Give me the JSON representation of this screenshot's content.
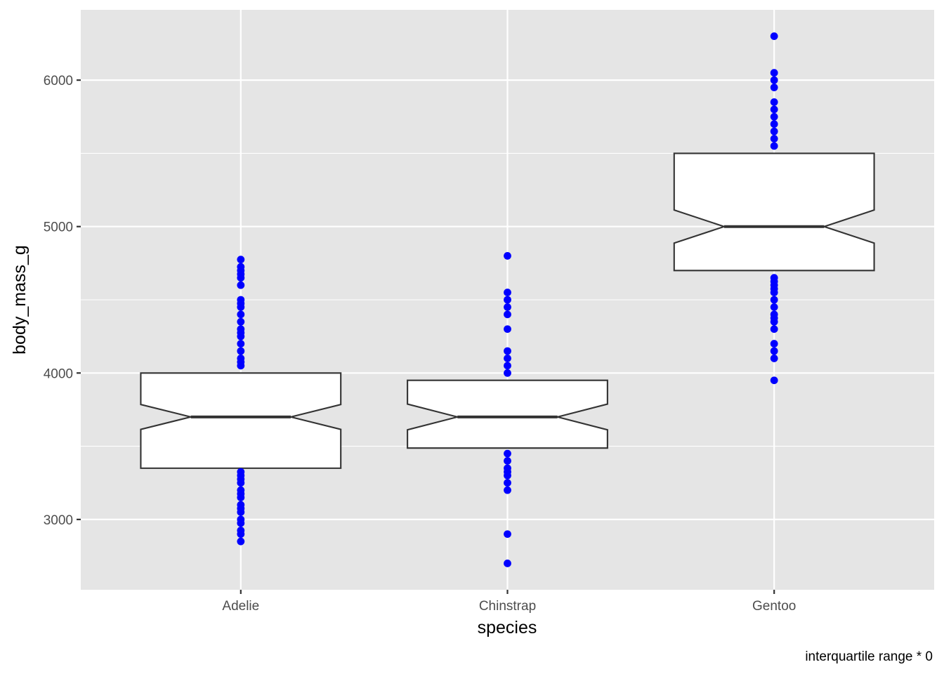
{
  "chart_data": {
    "type": "boxplot",
    "xlabel": "species",
    "ylabel": "body_mass_g",
    "caption": "interquartile range * 0",
    "categories": [
      "Adelie",
      "Chinstrap",
      "Gentoo"
    ],
    "ylim": [
      2520,
      6480
    ],
    "yticks": [
      3000,
      4000,
      5000,
      6000
    ],
    "yticks_minor": [
      3500,
      4500,
      5500
    ],
    "grid": true,
    "notch": true,
    "boxes": [
      {
        "category": "Adelie",
        "q1": 3350,
        "median": 3700,
        "q3": 4000,
        "notch_low": 3615,
        "notch_high": 3785
      },
      {
        "category": "Chinstrap",
        "q1": 3487.5,
        "median": 3700,
        "q3": 3950,
        "notch_low": 3612,
        "notch_high": 3788
      },
      {
        "category": "Gentoo",
        "q1": 4700,
        "median": 5000,
        "q3": 5500,
        "notch_low": 4887,
        "notch_high": 5113
      }
    ],
    "outlier_color": "#0000FF",
    "box_fill": "#FFFFFF",
    "panel_background": "#E5E5E5",
    "outliers": [
      [
        4775,
        4725,
        4700,
        4675,
        4650,
        4600,
        4500,
        4475,
        4450,
        4400,
        4350,
        4300,
        4275,
        4250,
        4200,
        4150,
        4100,
        4075,
        4050,
        3325,
        3300,
        3275,
        3250,
        3200,
        3175,
        3150,
        3100,
        3075,
        3050,
        3000,
        2975,
        2925,
        2900,
        2850
      ],
      [
        4800,
        4550,
        4500,
        4450,
        4400,
        4300,
        4150,
        4100,
        4050,
        4000,
        3450,
        3400,
        3350,
        3325,
        3300,
        3250,
        3200,
        2900,
        2700
      ],
      [
        6300,
        6050,
        6000,
        5950,
        5850,
        5800,
        5750,
        5700,
        5650,
        5600,
        5550,
        4650,
        4625,
        4600,
        4575,
        4550,
        4500,
        4450,
        4400,
        4375,
        4350,
        4300,
        4200,
        4150,
        4100,
        3950
      ]
    ]
  }
}
